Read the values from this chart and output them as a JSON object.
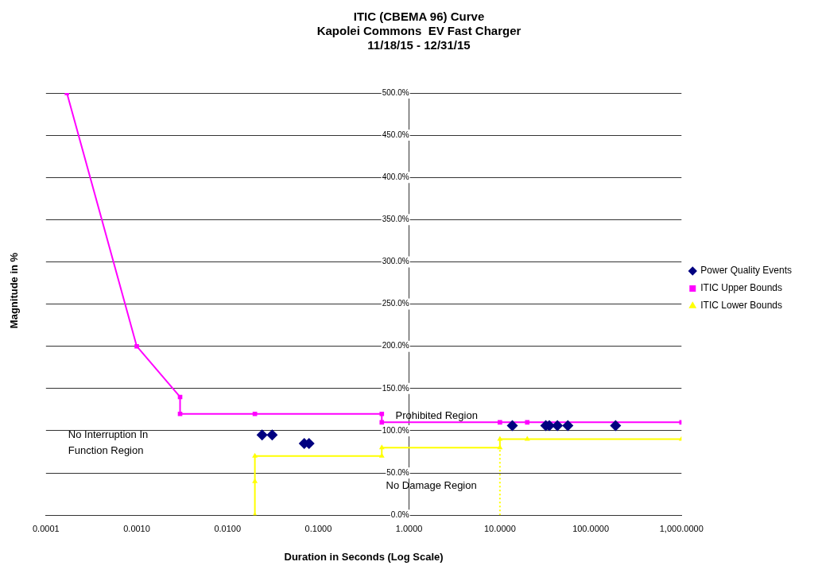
{
  "chart_data": {
    "type": "scatter",
    "title": "ITIC (CBEMA 96) Curve\nKapolei Commons  EV Fast Charger\n11/18/15 - 12/31/15",
    "xlabel": "Duration in Seconds (Log Scale)",
    "ylabel": "Magnitude in %",
    "log": "x",
    "grid": "y",
    "legend": "right",
    "xlim": [
      0.0001,
      1000
    ],
    "xticks": [
      {
        "value": 0.0001,
        "label": "0.0001"
      },
      {
        "value": 0.001,
        "label": "0.0010"
      },
      {
        "value": 0.01,
        "label": "0.0100"
      },
      {
        "value": 0.1,
        "label": "0.1000"
      },
      {
        "value": 1,
        "label": "1.0000"
      },
      {
        "value": 10,
        "label": "10.0000"
      },
      {
        "value": 100,
        "label": "100.0000"
      },
      {
        "value": 1000,
        "label": "1,000.0000"
      }
    ],
    "ylim": [
      0,
      500
    ],
    "yticks": [
      {
        "value": 0,
        "label": "0.0%"
      },
      {
        "value": 50,
        "label": "50.0%"
      },
      {
        "value": 100,
        "label": "100.0%"
      },
      {
        "value": 150,
        "label": "150.0%"
      },
      {
        "value": 200,
        "label": "200.0%"
      },
      {
        "value": 250,
        "label": "250.0%"
      },
      {
        "value": 300,
        "label": "300.0%"
      },
      {
        "value": 350,
        "label": "350.0%"
      },
      {
        "value": 400,
        "label": "400.0%"
      },
      {
        "value": 450,
        "label": "450.0%"
      },
      {
        "value": 500,
        "label": "500.0%"
      }
    ],
    "series": [
      {
        "name": "Power Quality Events",
        "type": "scatter",
        "marker": "diamond",
        "color": "#000080",
        "x": [
          0.024,
          0.031,
          0.07,
          0.079,
          13.7,
          32,
          35,
          43,
          56,
          188
        ],
        "values": [
          95,
          95,
          85,
          85,
          106,
          106,
          106,
          106,
          106,
          106
        ]
      },
      {
        "name": "ITIC Upper Bounds",
        "type": "line",
        "marker": "square",
        "color": "#ff00ff",
        "x": [
          0.00017,
          0.001,
          0.003,
          0.003,
          0.02,
          0.5,
          0.5,
          10,
          20,
          1000
        ],
        "values": [
          500,
          200,
          140,
          120,
          120,
          120,
          110,
          110,
          110,
          110
        ]
      },
      {
        "name": "ITIC Lower Bounds",
        "type": "line",
        "marker": "triangle",
        "color": "#ffff00",
        "x": [
          0.02,
          0.02,
          0.02,
          0.5,
          0.5,
          10,
          10,
          20,
          1000
        ],
        "values": [
          0,
          40,
          70,
          70,
          80,
          80,
          90,
          90,
          90
        ]
      },
      {
        "type": "line",
        "marker": "none",
        "line_style": "dotted",
        "color": "#ffff00",
        "x": [
          10,
          10
        ],
        "values": [
          0,
          80
        ]
      }
    ],
    "annotations": [
      "Prohibited Region",
      "No Interruption In\nFunction Region",
      "No Damage Region"
    ]
  }
}
